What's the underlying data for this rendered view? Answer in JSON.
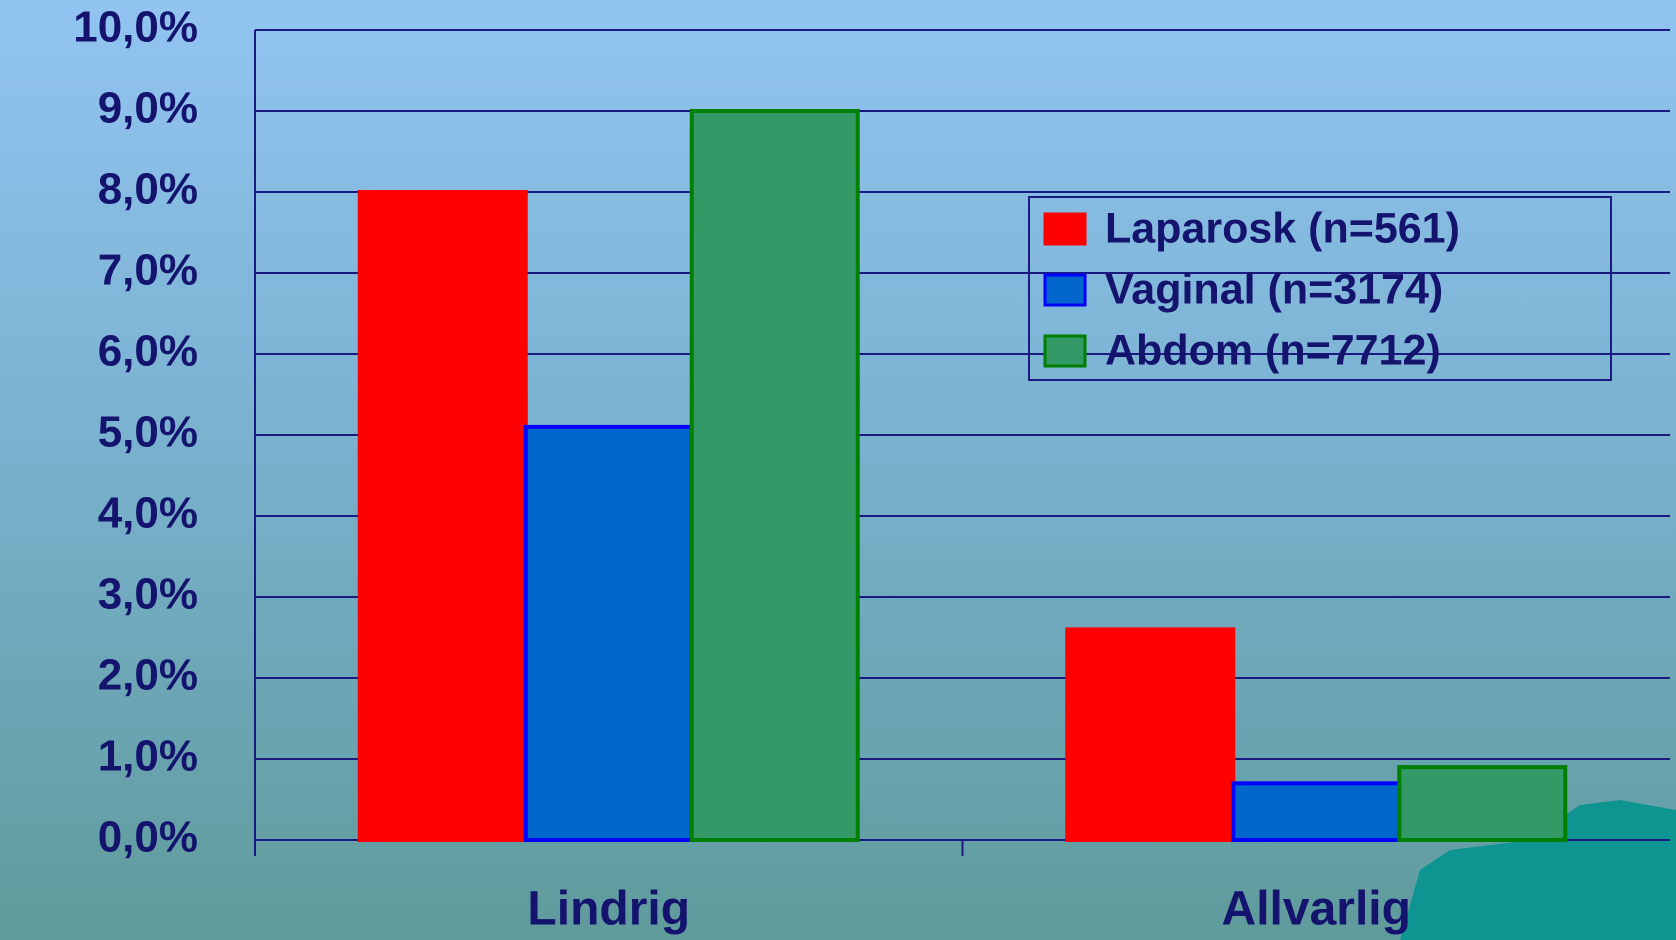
{
  "chart_data": {
    "type": "bar",
    "categories": [
      "Lindrig",
      "Allvarlig"
    ],
    "series": [
      {
        "name": "Laparosk (n=561)",
        "color": "#ff0000",
        "edgecolor": "#ff0000",
        "values": [
          8.0,
          2.6
        ]
      },
      {
        "name": "Vaginal (n=3174)",
        "color": "#0066cc",
        "edgecolor": "#0000ff",
        "values": [
          5.1,
          0.7
        ]
      },
      {
        "name": "Abdom (n=7712)",
        "color": "#339966",
        "edgecolor": "#008000",
        "values": [
          9.0,
          0.9
        ]
      }
    ],
    "ylim": [
      0,
      10
    ],
    "yticks": [
      {
        "value": 0,
        "label": "0,0%"
      },
      {
        "value": 1,
        "label": "1,0%"
      },
      {
        "value": 2,
        "label": "2,0%"
      },
      {
        "value": 3,
        "label": "3,0%"
      },
      {
        "value": 4,
        "label": "4,0%"
      },
      {
        "value": 5,
        "label": "5,0%"
      },
      {
        "value": 6,
        "label": "6,0%"
      },
      {
        "value": 7,
        "label": "7,0%"
      },
      {
        "value": 8,
        "label": "8,0%"
      },
      {
        "value": 9,
        "label": "9,0%"
      },
      {
        "value": 10,
        "label": "10,0%"
      }
    ],
    "grid": true,
    "legend": "upper-right"
  }
}
